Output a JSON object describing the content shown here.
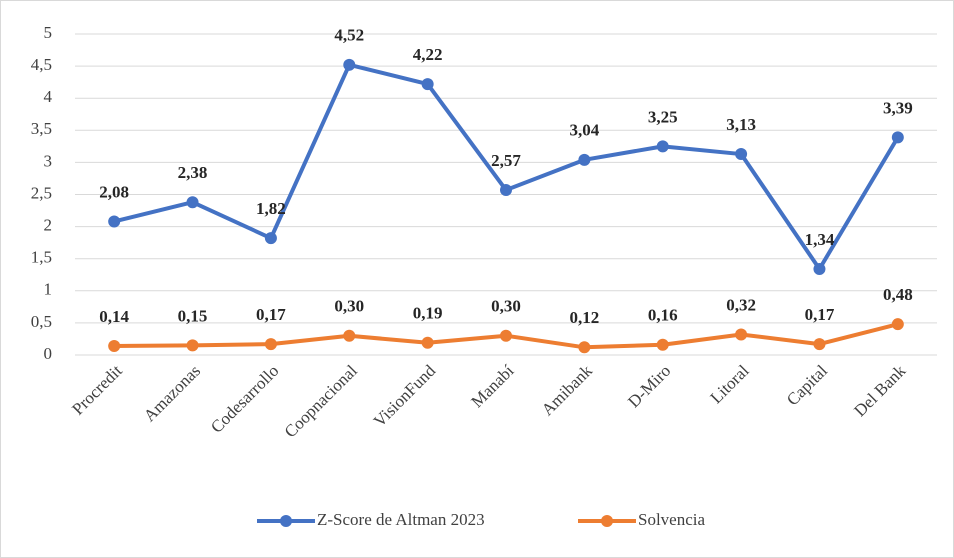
{
  "chart_data": {
    "type": "line",
    "categories": [
      "Procredit",
      "Amazonas",
      "Codesarrollo",
      "Coopnacional",
      "VisionFund",
      "Manabí",
      "Amibank",
      "D-Miro",
      "Litoral",
      "Capital",
      "Del Bank"
    ],
    "series": [
      {
        "name": "Z-Score de Altman 2023",
        "color": "#4472c4",
        "values": [
          2.08,
          2.38,
          1.82,
          4.52,
          4.22,
          2.57,
          3.04,
          3.25,
          3.13,
          1.34,
          3.39
        ],
        "value_labels": [
          "2,08",
          "2,38",
          "1,82",
          "4,52",
          "4,22",
          "2,57",
          "3,04",
          "3,25",
          "3,13",
          "1,34",
          "3,39"
        ]
      },
      {
        "name": "Solvencia",
        "color": "#ed7d31",
        "values": [
          0.14,
          0.15,
          0.17,
          0.3,
          0.19,
          0.3,
          0.12,
          0.16,
          0.32,
          0.17,
          0.48
        ],
        "value_labels": [
          "0,14",
          "0,15",
          "0,17",
          "0,30",
          "0,19",
          "0,30",
          "0,12",
          "0,16",
          "0,32",
          "0,17",
          "0,48"
        ]
      }
    ],
    "ylim": [
      0,
      5
    ],
    "yticks": [
      0,
      {
        "value": 0.5,
        "label": "0,5"
      },
      1,
      {
        "value": 1.5,
        "label": "1,5"
      },
      2,
      {
        "value": 2.5,
        "label": "2,5"
      },
      3,
      {
        "value": 3.5,
        "label": "3,5"
      },
      4,
      {
        "value": 4.5,
        "label": "4,5"
      },
      5
    ],
    "grid": true,
    "legend": "bottom"
  }
}
